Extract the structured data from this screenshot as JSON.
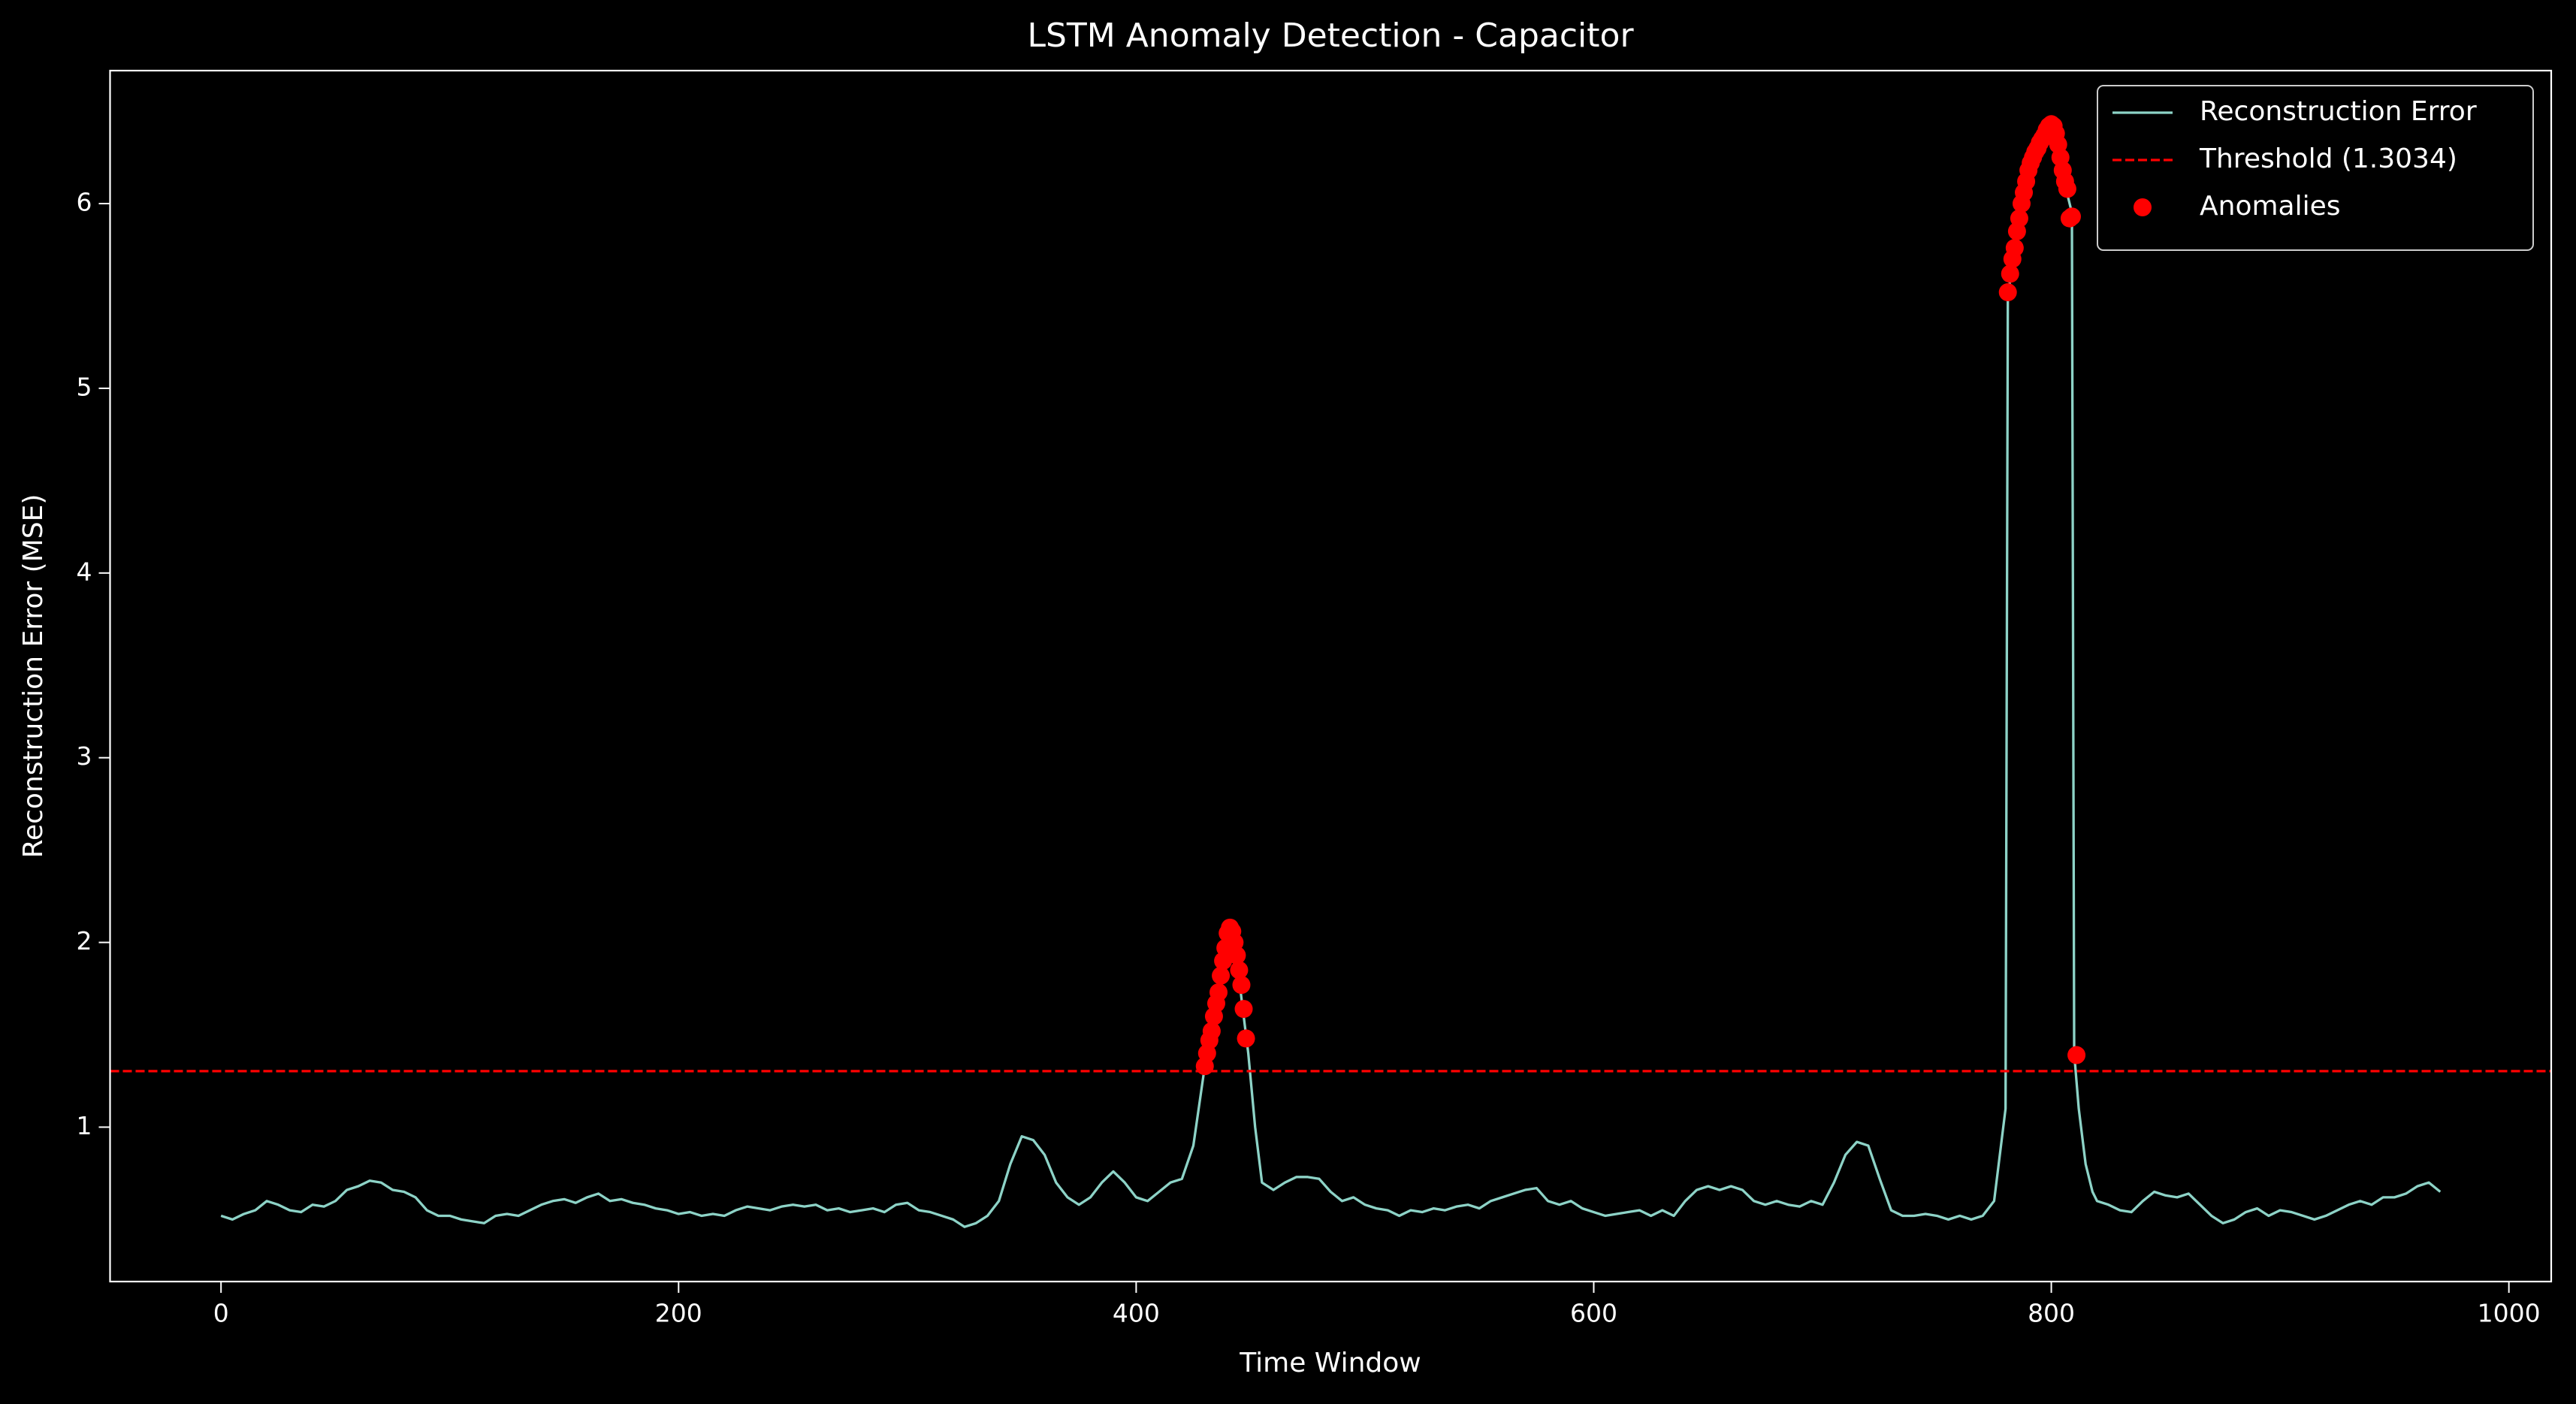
{
  "chart_data": {
    "type": "line",
    "title": "LSTM Anomaly Detection - Capacitor",
    "xlabel": "Time Window",
    "ylabel": "Reconstruction Error (MSE)",
    "xlim": [
      -48.5,
      1018.5
    ],
    "xticks": [
      0,
      200,
      400,
      600,
      800,
      1000
    ],
    "ylim": [
      0.164,
      6.72
    ],
    "yticks": [
      1,
      2,
      3,
      4,
      5,
      6
    ],
    "legend": "upper right",
    "grid": false,
    "series": [
      {
        "name": "Reconstruction Error",
        "type": "line",
        "color": "#8dd3c7",
        "x": [
          0,
          5,
          10,
          15,
          20,
          25,
          30,
          35,
          40,
          45,
          50,
          55,
          60,
          65,
          70,
          75,
          80,
          85,
          90,
          95,
          100,
          105,
          110,
          115,
          120,
          125,
          130,
          135,
          140,
          145,
          150,
          155,
          160,
          165,
          170,
          175,
          180,
          185,
          190,
          195,
          200,
          205,
          210,
          215,
          220,
          225,
          230,
          235,
          240,
          245,
          250,
          255,
          260,
          265,
          270,
          275,
          280,
          285,
          290,
          295,
          300,
          305,
          310,
          315,
          320,
          325,
          330,
          335,
          340,
          345,
          350,
          355,
          360,
          365,
          370,
          375,
          380,
          385,
          390,
          395,
          400,
          405,
          410,
          415,
          420,
          425,
          430,
          433,
          436,
          439,
          441,
          443,
          445,
          447,
          449,
          452,
          455,
          460,
          465,
          470,
          475,
          480,
          485,
          490,
          495,
          500,
          505,
          510,
          515,
          520,
          525,
          530,
          535,
          540,
          545,
          550,
          555,
          560,
          565,
          570,
          575,
          580,
          585,
          590,
          595,
          600,
          605,
          610,
          615,
          620,
          625,
          630,
          635,
          640,
          645,
          650,
          655,
          660,
          665,
          670,
          675,
          680,
          685,
          690,
          695,
          700,
          705,
          710,
          715,
          720,
          725,
          730,
          735,
          740,
          745,
          750,
          755,
          760,
          765,
          770,
          775,
          778,
          780,
          781,
          784,
          787,
          790,
          793,
          796,
          799,
          801,
          803,
          805,
          807,
          809,
          810,
          812,
          815,
          818,
          820,
          825,
          830,
          835,
          840,
          845,
          850,
          855,
          860,
          865,
          870,
          875,
          880,
          885,
          890,
          895,
          900,
          905,
          910,
          915,
          920,
          925,
          930,
          935,
          940,
          945,
          950,
          955,
          960,
          965,
          970
        ],
        "values": [
          0.52,
          0.5,
          0.53,
          0.55,
          0.6,
          0.58,
          0.55,
          0.54,
          0.58,
          0.57,
          0.6,
          0.66,
          0.68,
          0.71,
          0.7,
          0.66,
          0.65,
          0.62,
          0.55,
          0.52,
          0.52,
          0.5,
          0.49,
          0.48,
          0.52,
          0.53,
          0.52,
          0.55,
          0.58,
          0.6,
          0.61,
          0.59,
          0.62,
          0.64,
          0.6,
          0.61,
          0.59,
          0.58,
          0.56,
          0.55,
          0.53,
          0.54,
          0.52,
          0.53,
          0.52,
          0.55,
          0.57,
          0.56,
          0.55,
          0.57,
          0.58,
          0.57,
          0.58,
          0.55,
          0.56,
          0.54,
          0.55,
          0.56,
          0.54,
          0.58,
          0.59,
          0.55,
          0.54,
          0.52,
          0.5,
          0.46,
          0.48,
          0.52,
          0.6,
          0.8,
          0.95,
          0.93,
          0.85,
          0.7,
          0.62,
          0.58,
          0.62,
          0.7,
          0.76,
          0.7,
          0.62,
          0.6,
          0.65,
          0.7,
          0.72,
          0.9,
          1.33,
          1.5,
          1.7,
          1.95,
          2.08,
          2.0,
          1.8,
          1.6,
          1.4,
          1.0,
          0.7,
          0.66,
          0.7,
          0.73,
          0.73,
          0.72,
          0.65,
          0.6,
          0.62,
          0.58,
          0.56,
          0.55,
          0.52,
          0.55,
          0.54,
          0.56,
          0.55,
          0.57,
          0.58,
          0.56,
          0.6,
          0.62,
          0.64,
          0.66,
          0.67,
          0.6,
          0.58,
          0.6,
          0.56,
          0.54,
          0.52,
          0.53,
          0.54,
          0.55,
          0.52,
          0.55,
          0.52,
          0.6,
          0.66,
          0.68,
          0.66,
          0.68,
          0.66,
          0.6,
          0.58,
          0.6,
          0.58,
          0.57,
          0.6,
          0.58,
          0.7,
          0.85,
          0.92,
          0.9,
          0.72,
          0.55,
          0.52,
          0.52,
          0.53,
          0.52,
          0.5,
          0.52,
          0.5,
          0.52,
          0.6,
          0.9,
          1.1,
          5.5,
          5.75,
          5.95,
          6.15,
          6.25,
          6.32,
          6.4,
          6.42,
          6.35,
          6.2,
          6.05,
          5.95,
          1.4,
          1.1,
          0.8,
          0.65,
          0.6,
          0.58,
          0.55,
          0.54,
          0.6,
          0.65,
          0.63,
          0.62,
          0.64,
          0.58,
          0.52,
          0.48,
          0.5,
          0.54,
          0.56,
          0.52,
          0.55,
          0.54,
          0.52,
          0.5,
          0.52,
          0.55,
          0.58,
          0.6,
          0.58,
          0.62,
          0.62,
          0.64,
          0.68,
          0.7,
          0.65
        ]
      },
      {
        "name": "Threshold (1.3034)",
        "type": "hline",
        "color": "#ff0000",
        "dashed": true,
        "value": 1.3034
      },
      {
        "name": "Anomalies",
        "type": "scatter",
        "color": "#ff0000",
        "x": [
          430,
          431,
          432,
          433,
          434,
          435,
          436,
          437,
          438,
          439,
          440,
          441,
          442,
          443,
          444,
          445,
          446,
          447,
          448,
          781,
          782,
          783,
          784,
          785,
          786,
          787,
          788,
          789,
          790,
          791,
          792,
          793,
          794,
          795,
          796,
          797,
          798,
          799,
          800,
          801,
          802,
          803,
          804,
          805,
          806,
          807,
          808,
          809,
          811
        ],
        "values": [
          1.33,
          1.4,
          1.47,
          1.52,
          1.6,
          1.67,
          1.73,
          1.82,
          1.9,
          1.97,
          2.05,
          2.08,
          2.06,
          2.0,
          1.93,
          1.85,
          1.77,
          1.64,
          1.48,
          5.52,
          5.62,
          5.7,
          5.76,
          5.85,
          5.92,
          6.0,
          6.06,
          6.12,
          6.18,
          6.22,
          6.25,
          6.28,
          6.3,
          6.33,
          6.35,
          6.37,
          6.4,
          6.42,
          6.43,
          6.42,
          6.38,
          6.32,
          6.25,
          6.18,
          6.12,
          6.08,
          5.92,
          5.93,
          1.39
        ]
      }
    ]
  }
}
